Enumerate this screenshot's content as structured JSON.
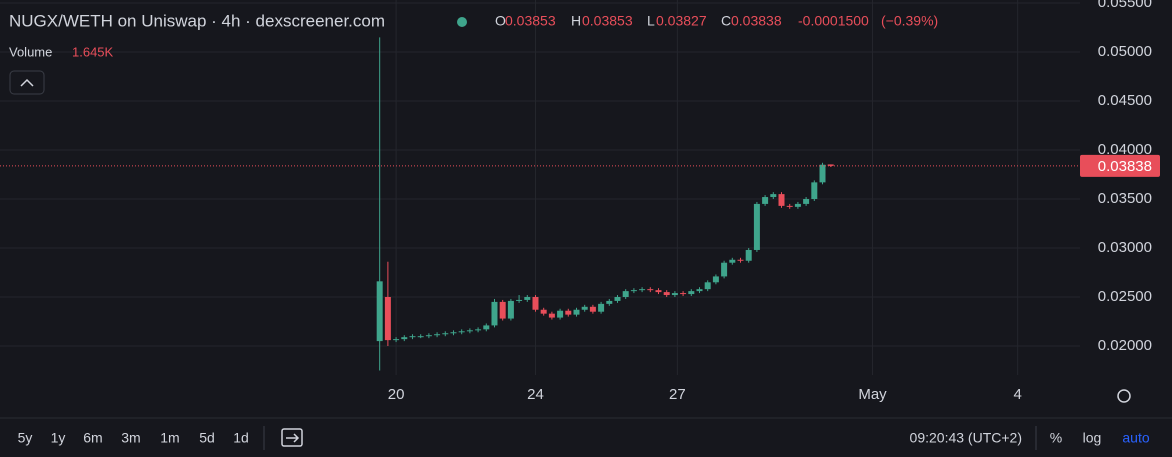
{
  "chart_data": {
    "type": "candlestick",
    "title": "NUGX/WETH on Uniswap · 4h · dexscreener.com",
    "legend_keys": [
      "O",
      "H",
      "L",
      "C"
    ],
    "change": {
      "value": -0.00015,
      "label": "-0.0001500"
    },
    "change_percent": {
      "value": -0.39,
      "label": "(−0.39%)"
    },
    "volume_label": "Volume",
    "volume": {
      "value": 1645,
      "label": "1.645K"
    },
    "up_color": "#3fa58c",
    "down_color": "#e84e5a",
    "candles": {
      "open": [
        0.0205,
        0.025,
        0.0206,
        0.0207,
        0.0209,
        0.021,
        0.021,
        0.0211,
        0.0212,
        0.0213,
        0.0214,
        0.0215,
        0.0216,
        0.0217,
        0.0221,
        0.0245,
        0.0228,
        0.0246,
        0.0247,
        0.025,
        0.0237,
        0.0233,
        0.0229,
        0.0236,
        0.0232,
        0.0237,
        0.024,
        0.0235,
        0.0243,
        0.0246,
        0.025,
        0.0256,
        0.0257,
        0.0258,
        0.0257,
        0.0255,
        0.0252,
        0.0254,
        0.0253,
        0.0256,
        0.0258,
        0.0265,
        0.0271,
        0.0285,
        0.0288,
        0.0287,
        0.0298,
        0.0345,
        0.0352,
        0.0355,
        0.0343,
        0.0342,
        0.0345,
        0.035,
        0.0367,
        0.03853
      ],
      "high": [
        0.0515,
        0.0286,
        0.0209,
        0.0211,
        0.0212,
        0.0212,
        0.0213,
        0.0214,
        0.0215,
        0.0216,
        0.0217,
        0.0218,
        0.0219,
        0.0223,
        0.0248,
        0.0247,
        0.0248,
        0.0252,
        0.0252,
        0.0252,
        0.0239,
        0.0235,
        0.0238,
        0.0238,
        0.0239,
        0.0242,
        0.0242,
        0.0245,
        0.0248,
        0.0252,
        0.0258,
        0.0259,
        0.026,
        0.026,
        0.0259,
        0.0257,
        0.0256,
        0.0256,
        0.0258,
        0.026,
        0.0267,
        0.0273,
        0.0287,
        0.029,
        0.029,
        0.03,
        0.0347,
        0.0354,
        0.0357,
        0.0357,
        0.0345,
        0.0347,
        0.0352,
        0.0369,
        0.0387,
        0.03853
      ],
      "low": [
        0.0175,
        0.02,
        0.0204,
        0.0205,
        0.0207,
        0.0208,
        0.0208,
        0.0209,
        0.021,
        0.0211,
        0.0212,
        0.0213,
        0.0214,
        0.0215,
        0.0219,
        0.0226,
        0.0226,
        0.0244,
        0.0245,
        0.0235,
        0.0231,
        0.0227,
        0.0227,
        0.023,
        0.023,
        0.0235,
        0.0233,
        0.0233,
        0.0241,
        0.0244,
        0.0248,
        0.0254,
        0.0255,
        0.0255,
        0.0253,
        0.025,
        0.025,
        0.0251,
        0.0251,
        0.0254,
        0.0256,
        0.0263,
        0.0269,
        0.0283,
        0.0285,
        0.0285,
        0.0296,
        0.0343,
        0.035,
        0.0341,
        0.034,
        0.034,
        0.0343,
        0.0348,
        0.0365,
        0.03827
      ],
      "close": [
        0.0266,
        0.0206,
        0.0207,
        0.0209,
        0.021,
        0.021,
        0.0211,
        0.0212,
        0.0213,
        0.0214,
        0.0215,
        0.0216,
        0.0217,
        0.0221,
        0.0245,
        0.0228,
        0.0246,
        0.0247,
        0.025,
        0.0237,
        0.0233,
        0.0229,
        0.0236,
        0.0232,
        0.0237,
        0.024,
        0.0235,
        0.0243,
        0.0246,
        0.025,
        0.0256,
        0.0257,
        0.0258,
        0.0257,
        0.0255,
        0.0252,
        0.0254,
        0.0253,
        0.0256,
        0.0258,
        0.0265,
        0.0271,
        0.0285,
        0.0288,
        0.0287,
        0.0298,
        0.0345,
        0.0352,
        0.0355,
        0.0343,
        0.0342,
        0.0345,
        0.035,
        0.0367,
        0.0385,
        0.03838
      ]
    },
    "xlim": [
      -46.3,
      85.4
    ],
    "xticks": [
      {
        "value": 2,
        "label": "20"
      },
      {
        "value": 19,
        "label": "24"
      },
      {
        "value": 36.3,
        "label": "27"
      },
      {
        "value": 60.1,
        "label": "May"
      },
      {
        "value": 77.8,
        "label": "4"
      }
    ],
    "ylim": [
      0.01704,
      0.05531
    ],
    "yticks": [
      {
        "value": 0.055,
        "label": "0.05500"
      },
      {
        "value": 0.05,
        "label": "0.05000"
      },
      {
        "value": 0.045,
        "label": "0.04500"
      },
      {
        "value": 0.04,
        "label": "0.04000"
      },
      {
        "value": 0.035,
        "label": "0.03500"
      },
      {
        "value": 0.03,
        "label": "0.03000"
      },
      {
        "value": 0.025,
        "label": "0.02500"
      },
      {
        "value": 0.02,
        "label": "0.02000"
      }
    ],
    "grid": true
  },
  "toolbar": {
    "ranges": [
      "5y",
      "1y",
      "6m",
      "3m",
      "1m",
      "5d",
      "1d"
    ],
    "time": "09:20:43 (UTC+2)",
    "options": [
      "%",
      "log",
      "auto"
    ]
  }
}
